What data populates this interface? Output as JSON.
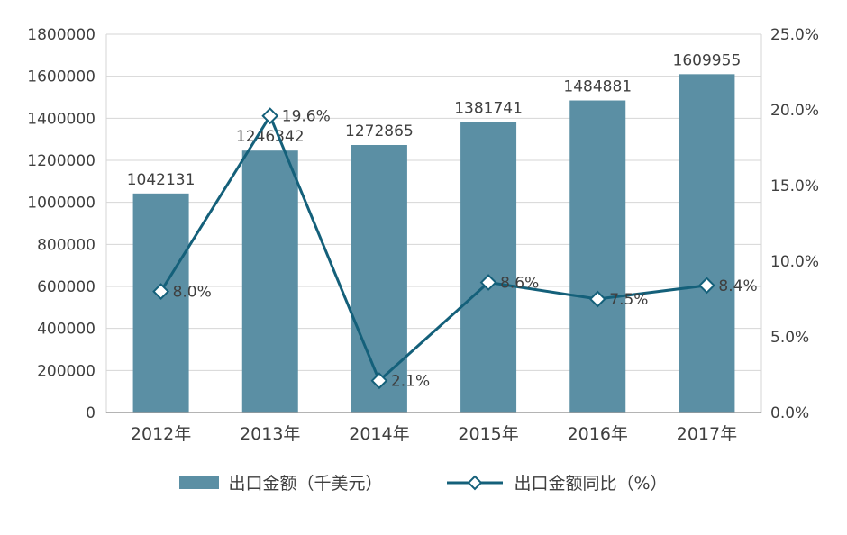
{
  "chart_data": {
    "type": "combo",
    "categories": [
      "2012年",
      "2013年",
      "2014年",
      "2015年",
      "2016年",
      "2017年"
    ],
    "series": [
      {
        "name": "出口金额（千美元）",
        "type": "bar",
        "values": [
          1042131,
          1246342,
          1272865,
          1381741,
          1484881,
          1609955
        ],
        "data_labels": [
          "1042131",
          "1246342",
          "1272865",
          "1381741",
          "1484881",
          "1609955"
        ],
        "color": "#5b8fa4",
        "axis": "left"
      },
      {
        "name": "出口金额同比（%）",
        "type": "line",
        "values": [
          8.0,
          19.6,
          2.1,
          8.6,
          7.5,
          8.4
        ],
        "data_labels": [
          "8.0%",
          "19.6%",
          "2.1%",
          "8.6%",
          "7.5%",
          "8.4%"
        ],
        "color": "#14607a",
        "marker": "diamond",
        "marker_fill": "#ffffff",
        "axis": "right"
      }
    ],
    "left_axis": {
      "min": 0,
      "max": 1800000,
      "step": 200000,
      "tick_labels": [
        "0",
        "200000",
        "400000",
        "600000",
        "800000",
        "1000000",
        "1200000",
        "1400000",
        "1600000",
        "1800000"
      ]
    },
    "right_axis": {
      "min": 0,
      "max": 25,
      "step": 5,
      "tick_labels": [
        "0.0%",
        "5.0%",
        "10.0%",
        "15.0%",
        "20.0%",
        "25.0%"
      ]
    },
    "grid": true,
    "legend_position": "bottom",
    "title": ""
  },
  "colors": {
    "bar": "#5b8fa4",
    "line": "#14607a",
    "grid": "#d6d6d6",
    "axis_line": "#9b9b9b",
    "text": "#3f3f3f"
  }
}
